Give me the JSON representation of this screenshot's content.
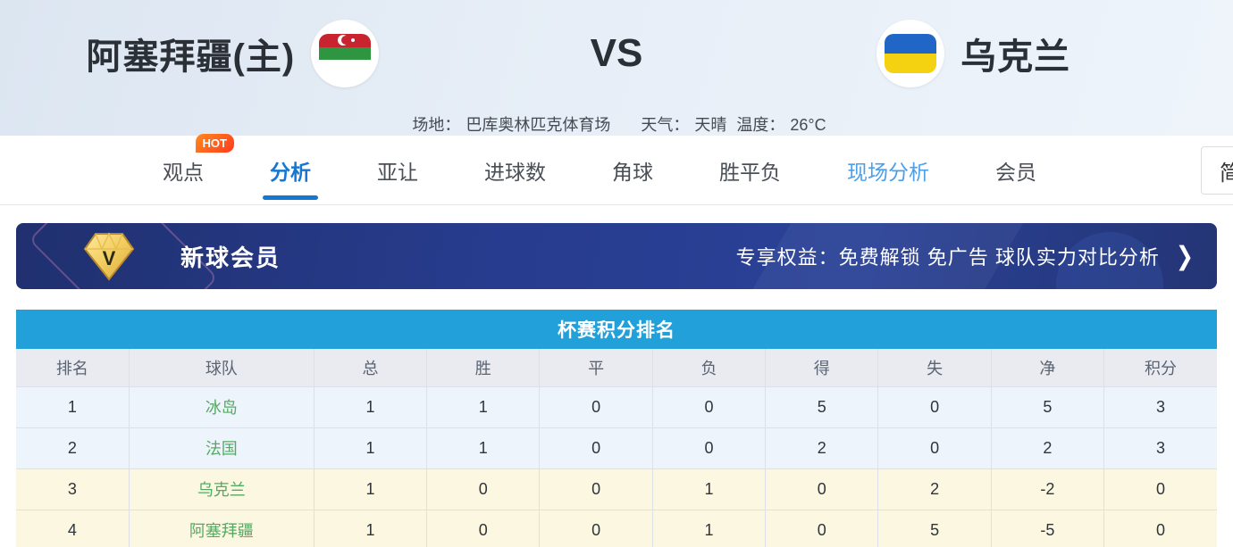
{
  "header": {
    "home_team": "阿塞拜疆(主)",
    "vs": "VS",
    "away_team": "乌克兰",
    "venue_label": "场地：",
    "venue": "巴库奥林匹克体育场",
    "weather_label": "天气：",
    "weather": "天晴",
    "temp_label": "温度：",
    "temperature": "26°C"
  },
  "nav": {
    "tabs": [
      {
        "label": "观点",
        "badge": "HOT",
        "active": false,
        "highlight": false
      },
      {
        "label": "分析",
        "badge": "",
        "active": true,
        "highlight": false
      },
      {
        "label": "亚让",
        "badge": "",
        "active": false,
        "highlight": false
      },
      {
        "label": "进球数",
        "badge": "",
        "active": false,
        "highlight": false
      },
      {
        "label": "角球",
        "badge": "",
        "active": false,
        "highlight": false
      },
      {
        "label": "胜平负",
        "badge": "",
        "active": false,
        "highlight": false
      },
      {
        "label": "现场分析",
        "badge": "",
        "active": false,
        "highlight": true
      },
      {
        "label": "会员",
        "badge": "",
        "active": false,
        "highlight": false
      }
    ],
    "lang_toggle": "简"
  },
  "banner": {
    "title": "新球会员",
    "benefits": "专享权益：免费解锁 免广告 球队实力对比分析",
    "arrow": "❯",
    "diamond_letter": "V"
  },
  "table": {
    "title": "杯赛积分排名",
    "columns": [
      "排名",
      "球队",
      "总",
      "胜",
      "平",
      "负",
      "得",
      "失",
      "净",
      "积分"
    ],
    "rows": [
      {
        "rank": "1",
        "team": "冰岛",
        "values": [
          "1",
          "1",
          "0",
          "0",
          "5",
          "0",
          "5",
          "3"
        ],
        "highlight": false
      },
      {
        "rank": "2",
        "team": "法国",
        "values": [
          "1",
          "1",
          "0",
          "0",
          "2",
          "0",
          "2",
          "3"
        ],
        "highlight": false
      },
      {
        "rank": "3",
        "team": "乌克兰",
        "values": [
          "1",
          "0",
          "0",
          "1",
          "0",
          "2",
          "-2",
          "0"
        ],
        "highlight": true
      },
      {
        "rank": "4",
        "team": "阿塞拜疆",
        "values": [
          "1",
          "0",
          "0",
          "1",
          "0",
          "5",
          "-5",
          "0"
        ],
        "highlight": true
      }
    ]
  },
  "colors": {
    "accent_blue": "#1677d2",
    "table_header_blue": "#22a0d9",
    "banner_navy": "#273c8e",
    "hot_orange": "#ff5a1f",
    "team_green": "#55aa63",
    "row_blue": "#eef4fb",
    "row_yellow": "#fbf7e0",
    "az_flag": [
      "#2b63c9",
      "#c8242f",
      "#2e9641"
    ],
    "ua_flag": [
      "#1f66c6",
      "#f4d212"
    ]
  }
}
